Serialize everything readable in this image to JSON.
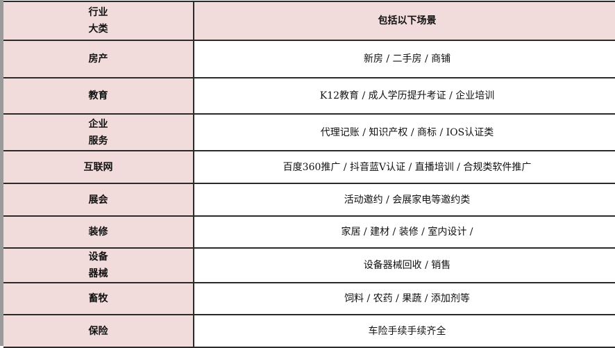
{
  "header": {
    "category": [
      "行业",
      "大类"
    ],
    "scenes": "包括以下场景"
  },
  "rows": [
    {
      "category": [
        "房产"
      ],
      "scenes": "新房 / 二手房 / 商铺"
    },
    {
      "category": [
        "教育"
      ],
      "scenes": "K12教育 / 成人学历提升考证 / 企业培训"
    },
    {
      "category": [
        "企业",
        "服务"
      ],
      "scenes": "代理记账 / 知识产权 / 商标 / IOS认证类"
    },
    {
      "category": [
        "互联网"
      ],
      "scenes": "百度360推广 / 抖音蓝V认证 / 直播培训 / 合规类软件推广"
    },
    {
      "category": [
        "展会"
      ],
      "scenes": "活动邀约 / 会展家电等邀约类"
    },
    {
      "category": [
        "装修"
      ],
      "scenes": "家居 / 建材 / 装修 / 室内设计 /"
    },
    {
      "category": [
        "设备",
        "器械"
      ],
      "scenes": "设备器械回收 / 销售"
    },
    {
      "category": [
        "畜牧"
      ],
      "scenes": "饲料 / 农药 / 果蔬 / 添加剂等"
    },
    {
      "category": [
        "保险"
      ],
      "scenes": "车险手续手续齐全"
    }
  ],
  "colors": {
    "category_bg": "#f2dcdb",
    "border": "#2a2a2a"
  }
}
